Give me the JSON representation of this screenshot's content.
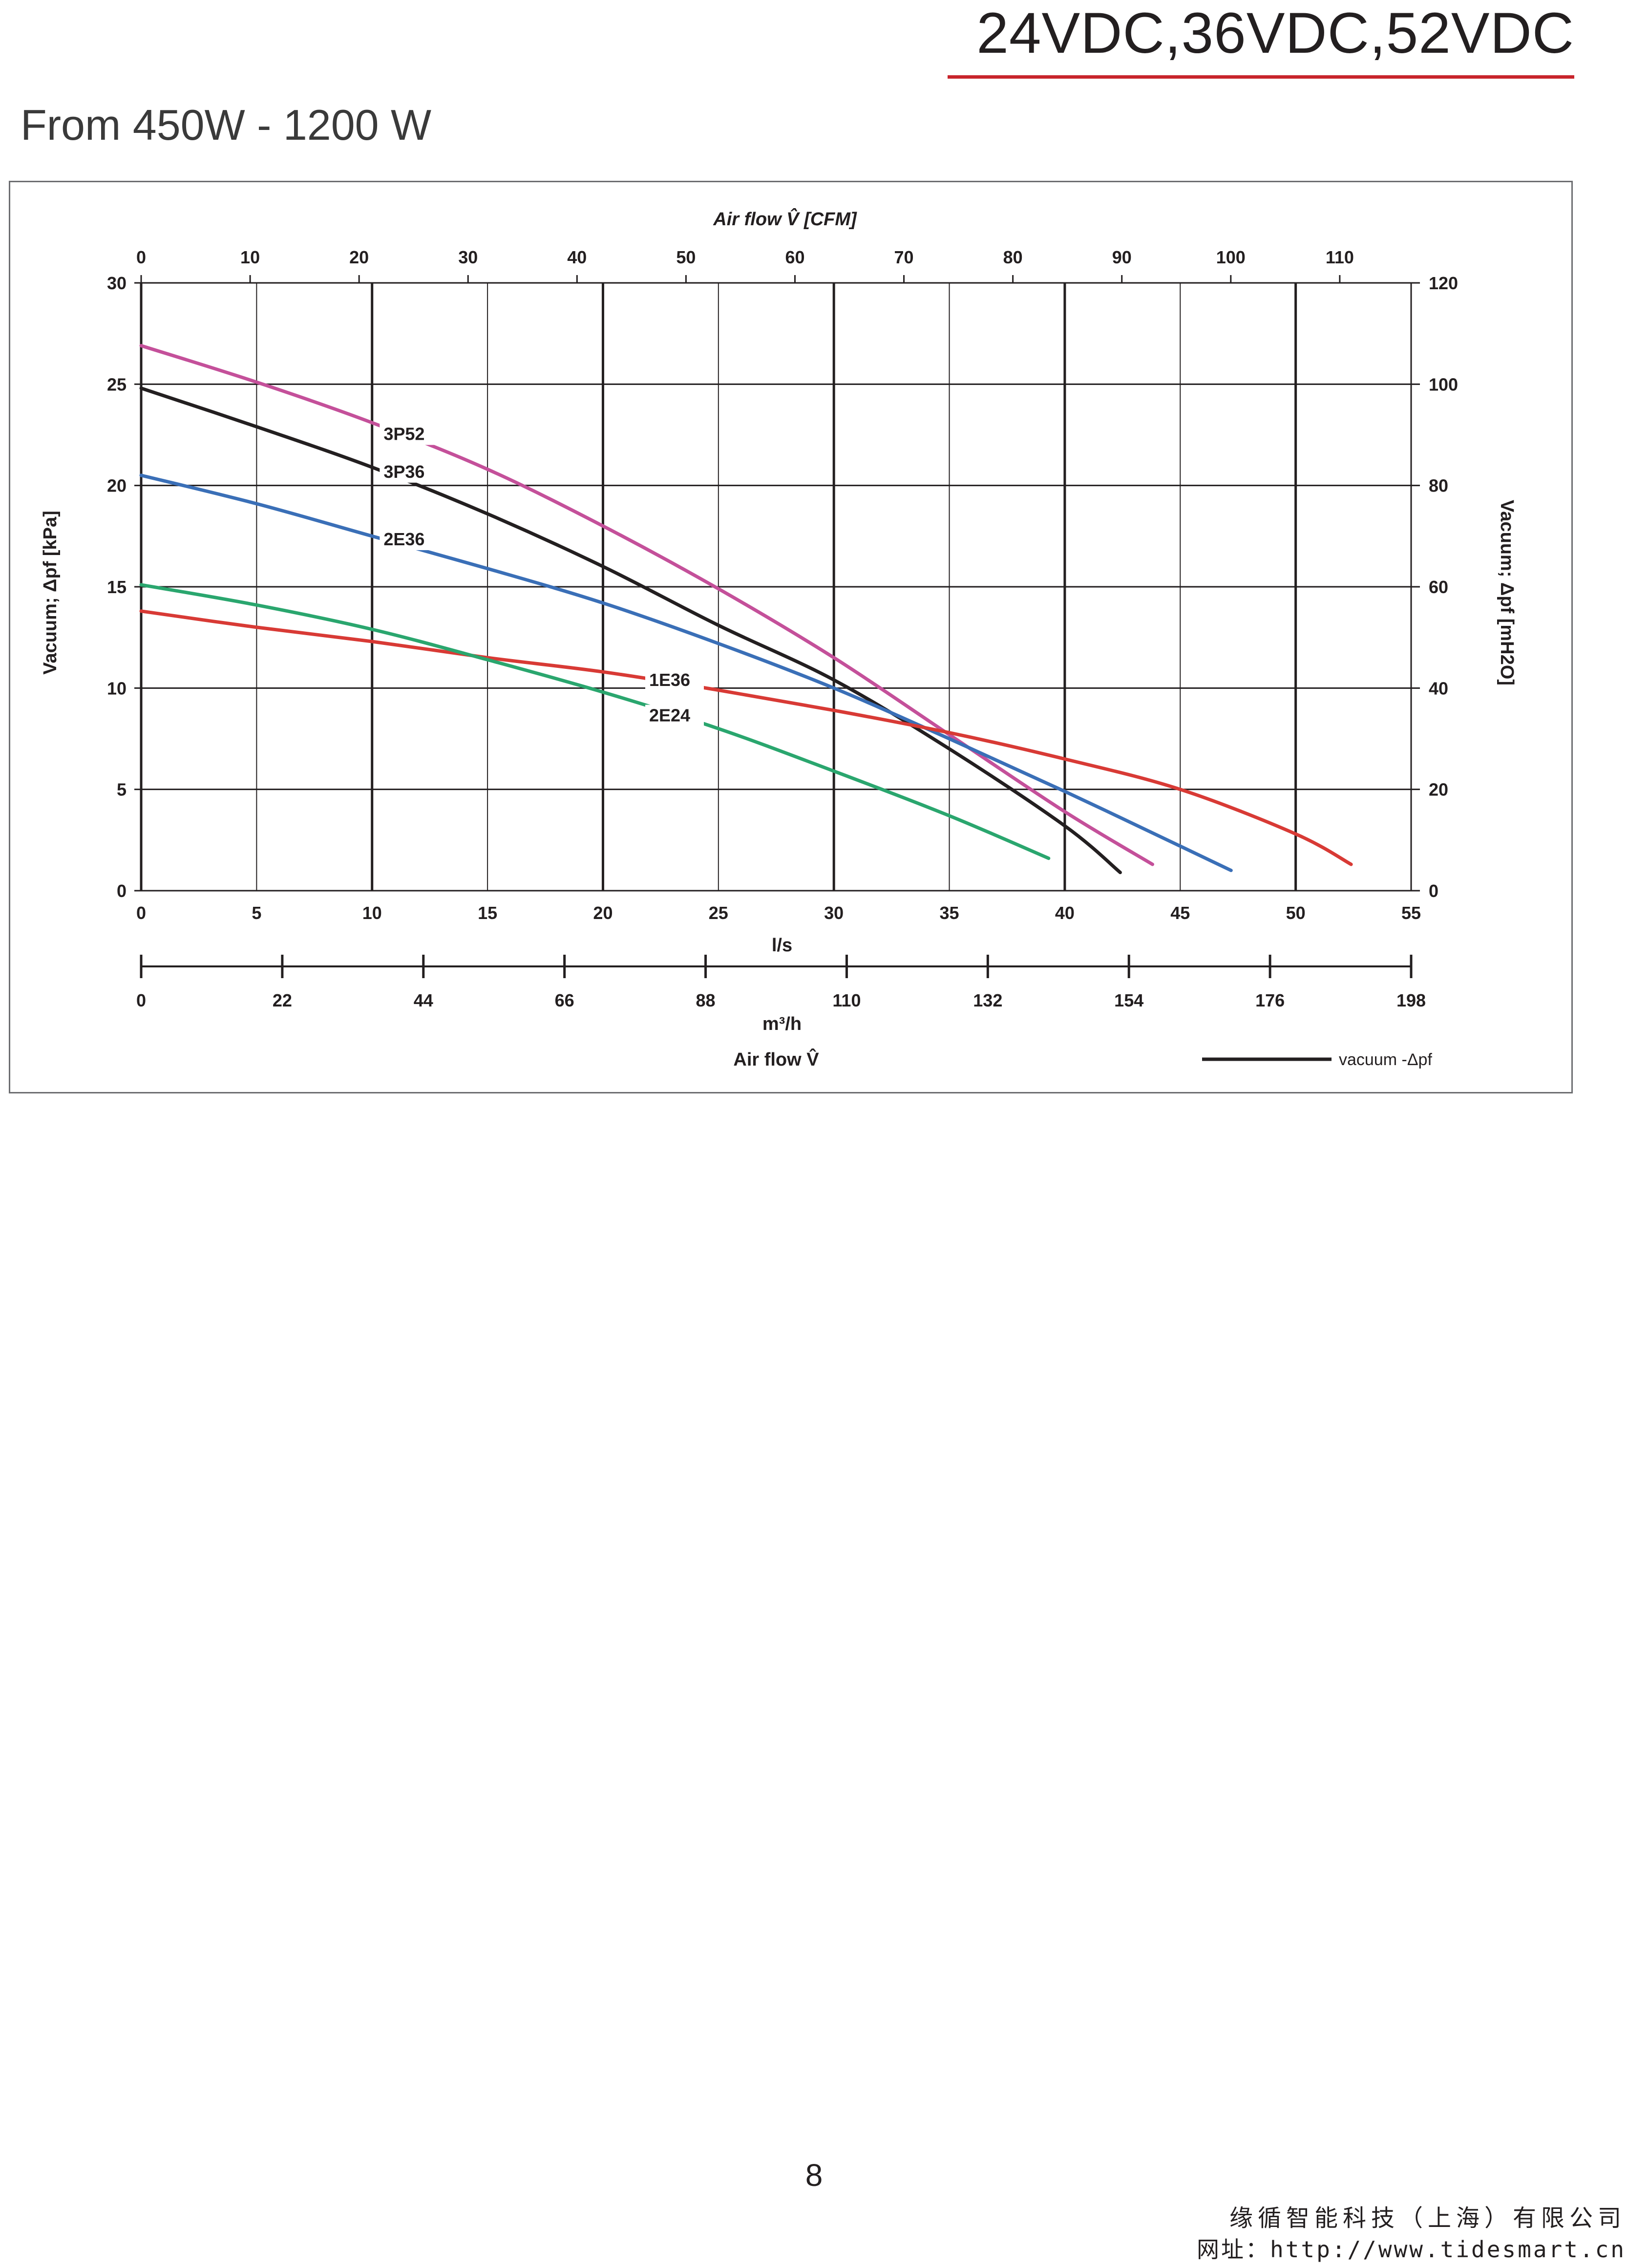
{
  "header": {
    "title": "24VDC,36VDC,52VDC",
    "subtitle": "From 450W - 1200 W",
    "accent_color": "#c8242b"
  },
  "chart_data": {
    "type": "line",
    "title": "",
    "top_axis": {
      "label": "Air flow V̂ [CFM]",
      "ticks": [
        "0",
        "10",
        "20",
        "30",
        "40",
        "50",
        "60",
        "70",
        "80",
        "90",
        "100",
        "110"
      ]
    },
    "x_axis": {
      "label": "l/s",
      "range": [
        0,
        55
      ],
      "ticks": [
        "0",
        "5",
        "10",
        "15",
        "20",
        "25",
        "30",
        "35",
        "40",
        "45",
        "50",
        "55"
      ]
    },
    "bottom_axis": {
      "unit": "m³/h",
      "label": "Air flow V̂",
      "ticks": [
        "0",
        "22",
        "44",
        "66",
        "88",
        "110",
        "132",
        "154",
        "176",
        "198"
      ]
    },
    "y_axis": {
      "label": "Vacuum; Δpf [kPa]",
      "range": [
        0,
        30
      ],
      "ticks": [
        "0",
        "5",
        "10",
        "15",
        "20",
        "25",
        "30"
      ]
    },
    "y2_axis": {
      "label": "Vacuum; Δpf [mH2O]",
      "ticks": [
        "0",
        "20",
        "40",
        "60",
        "80",
        "100",
        "120"
      ]
    },
    "grid": true,
    "legend": {
      "position": "bottom-right",
      "entries": [
        {
          "label": "vacuum -Δpf",
          "color": "#231f20"
        }
      ]
    },
    "series": [
      {
        "name": "3P52",
        "color": "#c4509a",
        "points": [
          [
            0,
            26.9
          ],
          [
            5,
            25.1
          ],
          [
            10,
            23.1
          ],
          [
            15,
            20.8
          ],
          [
            20,
            18.0
          ],
          [
            25,
            14.9
          ],
          [
            30,
            11.5
          ],
          [
            35,
            7.7
          ],
          [
            40,
            3.9
          ],
          [
            43.8,
            1.3
          ]
        ]
      },
      {
        "name": "3P36",
        "color": "#231f20",
        "points": [
          [
            0,
            24.8
          ],
          [
            5,
            22.9
          ],
          [
            10,
            20.9
          ],
          [
            15,
            18.6
          ],
          [
            20,
            16.0
          ],
          [
            25,
            13.1
          ],
          [
            30,
            10.4
          ],
          [
            35,
            7.0
          ],
          [
            40,
            3.2
          ],
          [
            42.4,
            0.9
          ]
        ]
      },
      {
        "name": "2E36",
        "color": "#3a6fb7",
        "points": [
          [
            0,
            20.5
          ],
          [
            5,
            19.1
          ],
          [
            10,
            17.5
          ],
          [
            15,
            15.9
          ],
          [
            20,
            14.2
          ],
          [
            25,
            12.2
          ],
          [
            30,
            10.0
          ],
          [
            35,
            7.5
          ],
          [
            40,
            4.9
          ],
          [
            45,
            2.2
          ],
          [
            47.2,
            1.0
          ]
        ]
      },
      {
        "name": "1E36",
        "color": "#d83a35",
        "points": [
          [
            0,
            13.8
          ],
          [
            5,
            13.0
          ],
          [
            10,
            12.3
          ],
          [
            15,
            11.5
          ],
          [
            20,
            10.8
          ],
          [
            25,
            9.9
          ],
          [
            30,
            8.9
          ],
          [
            35,
            7.8
          ],
          [
            40,
            6.5
          ],
          [
            45,
            5.0
          ],
          [
            50,
            2.8
          ],
          [
            52.4,
            1.3
          ]
        ]
      },
      {
        "name": "2E24",
        "color": "#2aa66e",
        "points": [
          [
            0,
            15.1
          ],
          [
            5,
            14.1
          ],
          [
            10,
            12.9
          ],
          [
            15,
            11.4
          ],
          [
            20,
            9.8
          ],
          [
            25,
            8.0
          ],
          [
            30,
            5.9
          ],
          [
            35,
            3.7
          ],
          [
            39.3,
            1.6
          ]
        ]
      }
    ]
  },
  "page": {
    "number": "8"
  },
  "footer": {
    "company": "缘循智能科技（上海）有限公司",
    "website": "网址：http://www.tidesmart.cn"
  }
}
